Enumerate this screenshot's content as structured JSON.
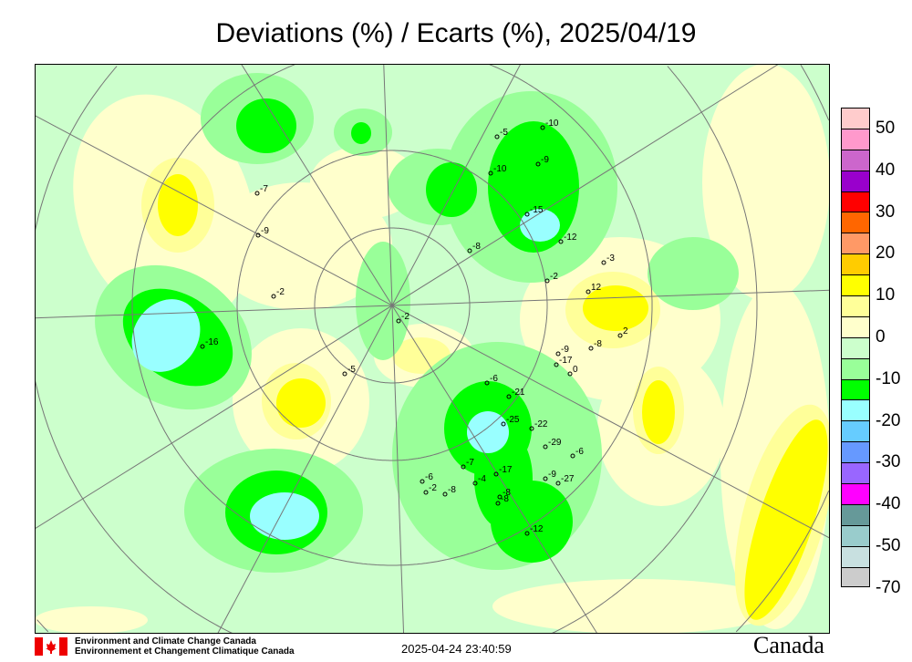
{
  "title": "Deviations (%) / Ecarts (%), 2025/04/19",
  "legend": {
    "colors": [
      "#ffcccc",
      "#ff99cc",
      "#cc66cc",
      "#9900cc",
      "#ff0000",
      "#ff6600",
      "#ff9966",
      "#ffcc00",
      "#ffff00",
      "#ffff99",
      "#ffffcc",
      "#ccffcc",
      "#99ff99",
      "#00ff00",
      "#99ffff",
      "#66ccff",
      "#6699ff",
      "#9966ff",
      "#ff00ff",
      "#669999",
      "#99cccc",
      "#c8e0e0",
      "#cccccc"
    ],
    "labels": [
      "50",
      "40",
      "30",
      "20",
      "10",
      "0",
      "-10",
      "-20",
      "-30",
      "-40",
      "-50",
      "-70"
    ]
  },
  "stations": [
    "-5",
    "-10",
    "-10",
    "-9",
    "-15",
    "-12",
    "-8",
    "-2",
    "12",
    "2",
    "-3",
    "-7",
    "-9",
    "-2",
    "-16",
    "-2",
    "-5",
    "-8",
    "-9",
    "-17",
    "0",
    "-6",
    "-21",
    "-25",
    "-22",
    "-29",
    "-9",
    "-6",
    "-7",
    "-4",
    "-17",
    "-8",
    "-8",
    "-27",
    "-12",
    "-6",
    "-2",
    "-8"
  ],
  "footer": {
    "org_en": "Environment and Climate Change Canada",
    "org_fr": "Environnement et Changement Climatique Canada",
    "timestamp": "2025-04-24 23:40:59",
    "wordmark": "Canada"
  }
}
